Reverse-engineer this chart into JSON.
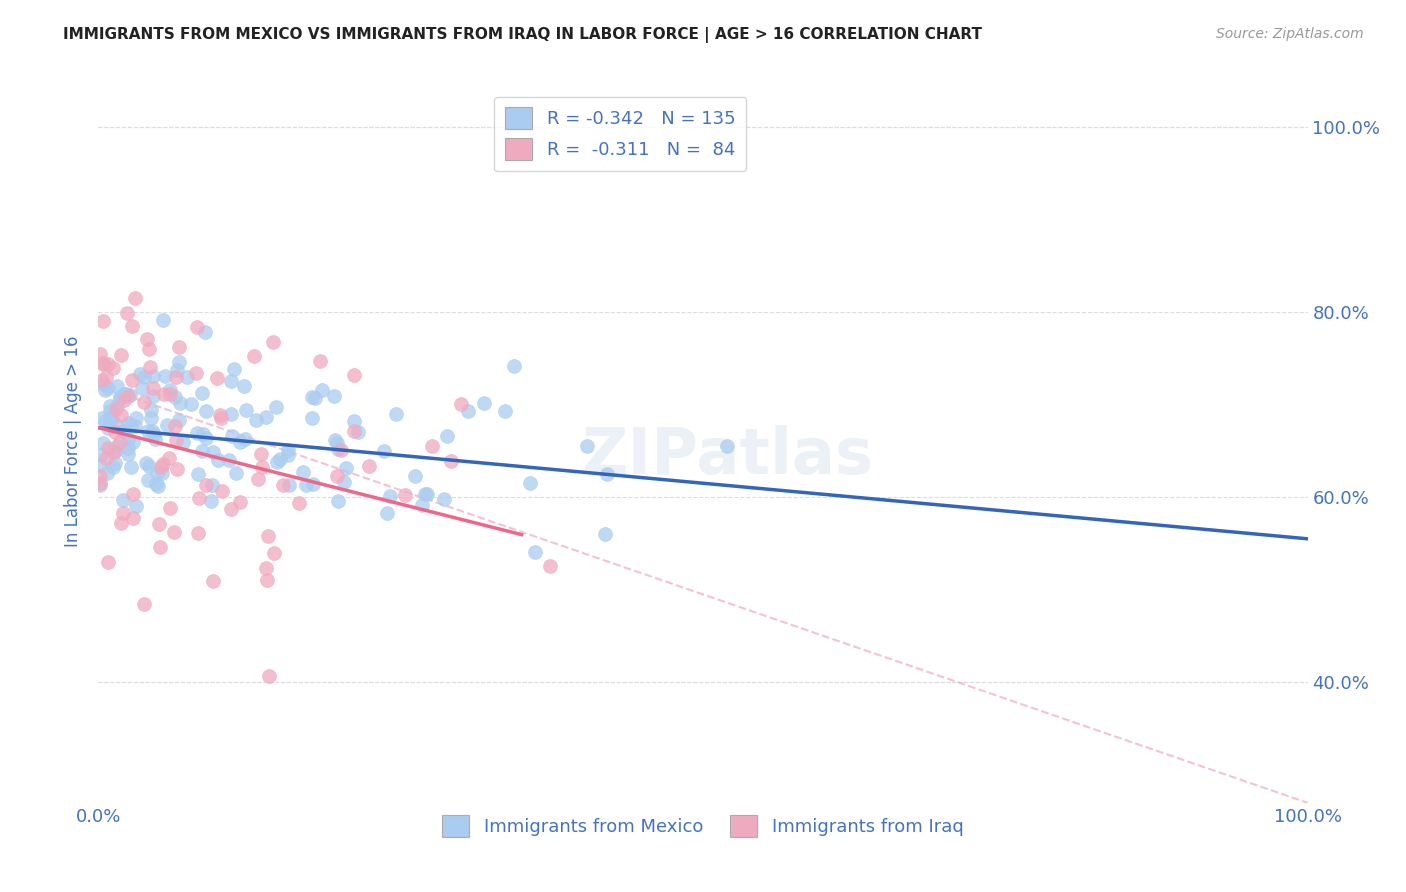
{
  "title": "IMMIGRANTS FROM MEXICO VS IMMIGRANTS FROM IRAQ IN LABOR FORCE | AGE > 16 CORRELATION CHART",
  "source": "Source: ZipAtlas.com",
  "ylabel": "In Labor Force | Age > 16",
  "watermark": "ZIPatlas",
  "mexico_r": -0.342,
  "mexico_n": 135,
  "iraq_r": -0.311,
  "iraq_n": 84,
  "mexico_color": "#aaccf0",
  "iraq_color": "#f0aac0",
  "mexico_line_color": "#3366bb",
  "iraq_line_color": "#ee6688",
  "dashed_line_color": "#f0aac0",
  "background_color": "#ffffff",
  "grid_color": "#dddddd",
  "title_color": "#222222",
  "axis_label_color": "#4472c4",
  "tick_label_color": "#4472c4",
  "xlim": [
    0,
    1
  ],
  "ylim": [
    0.27,
    1.05
  ],
  "yticks": [
    0.4,
    0.6,
    0.8,
    1.0
  ],
  "ytick_labels": [
    "40.0%",
    "60.0%",
    "80.0%",
    "100.0%"
  ],
  "xticks": [
    0.0,
    1.0
  ],
  "xtick_labels": [
    "0.0%",
    "100.0%"
  ],
  "legend_line1": "R = -0.342   N = 135",
  "legend_line2": "R =  -0.311   N =  84",
  "bottom_legend_1": "Immigrants from Mexico",
  "bottom_legend_2": "Immigrants from Iraq",
  "mexico_intercept": 0.675,
  "mexico_slope": -0.12,
  "iraq_intercept": 0.675,
  "iraq_slope": -0.33,
  "dashed_slope": -0.45,
  "dashed_intercept": 0.72
}
